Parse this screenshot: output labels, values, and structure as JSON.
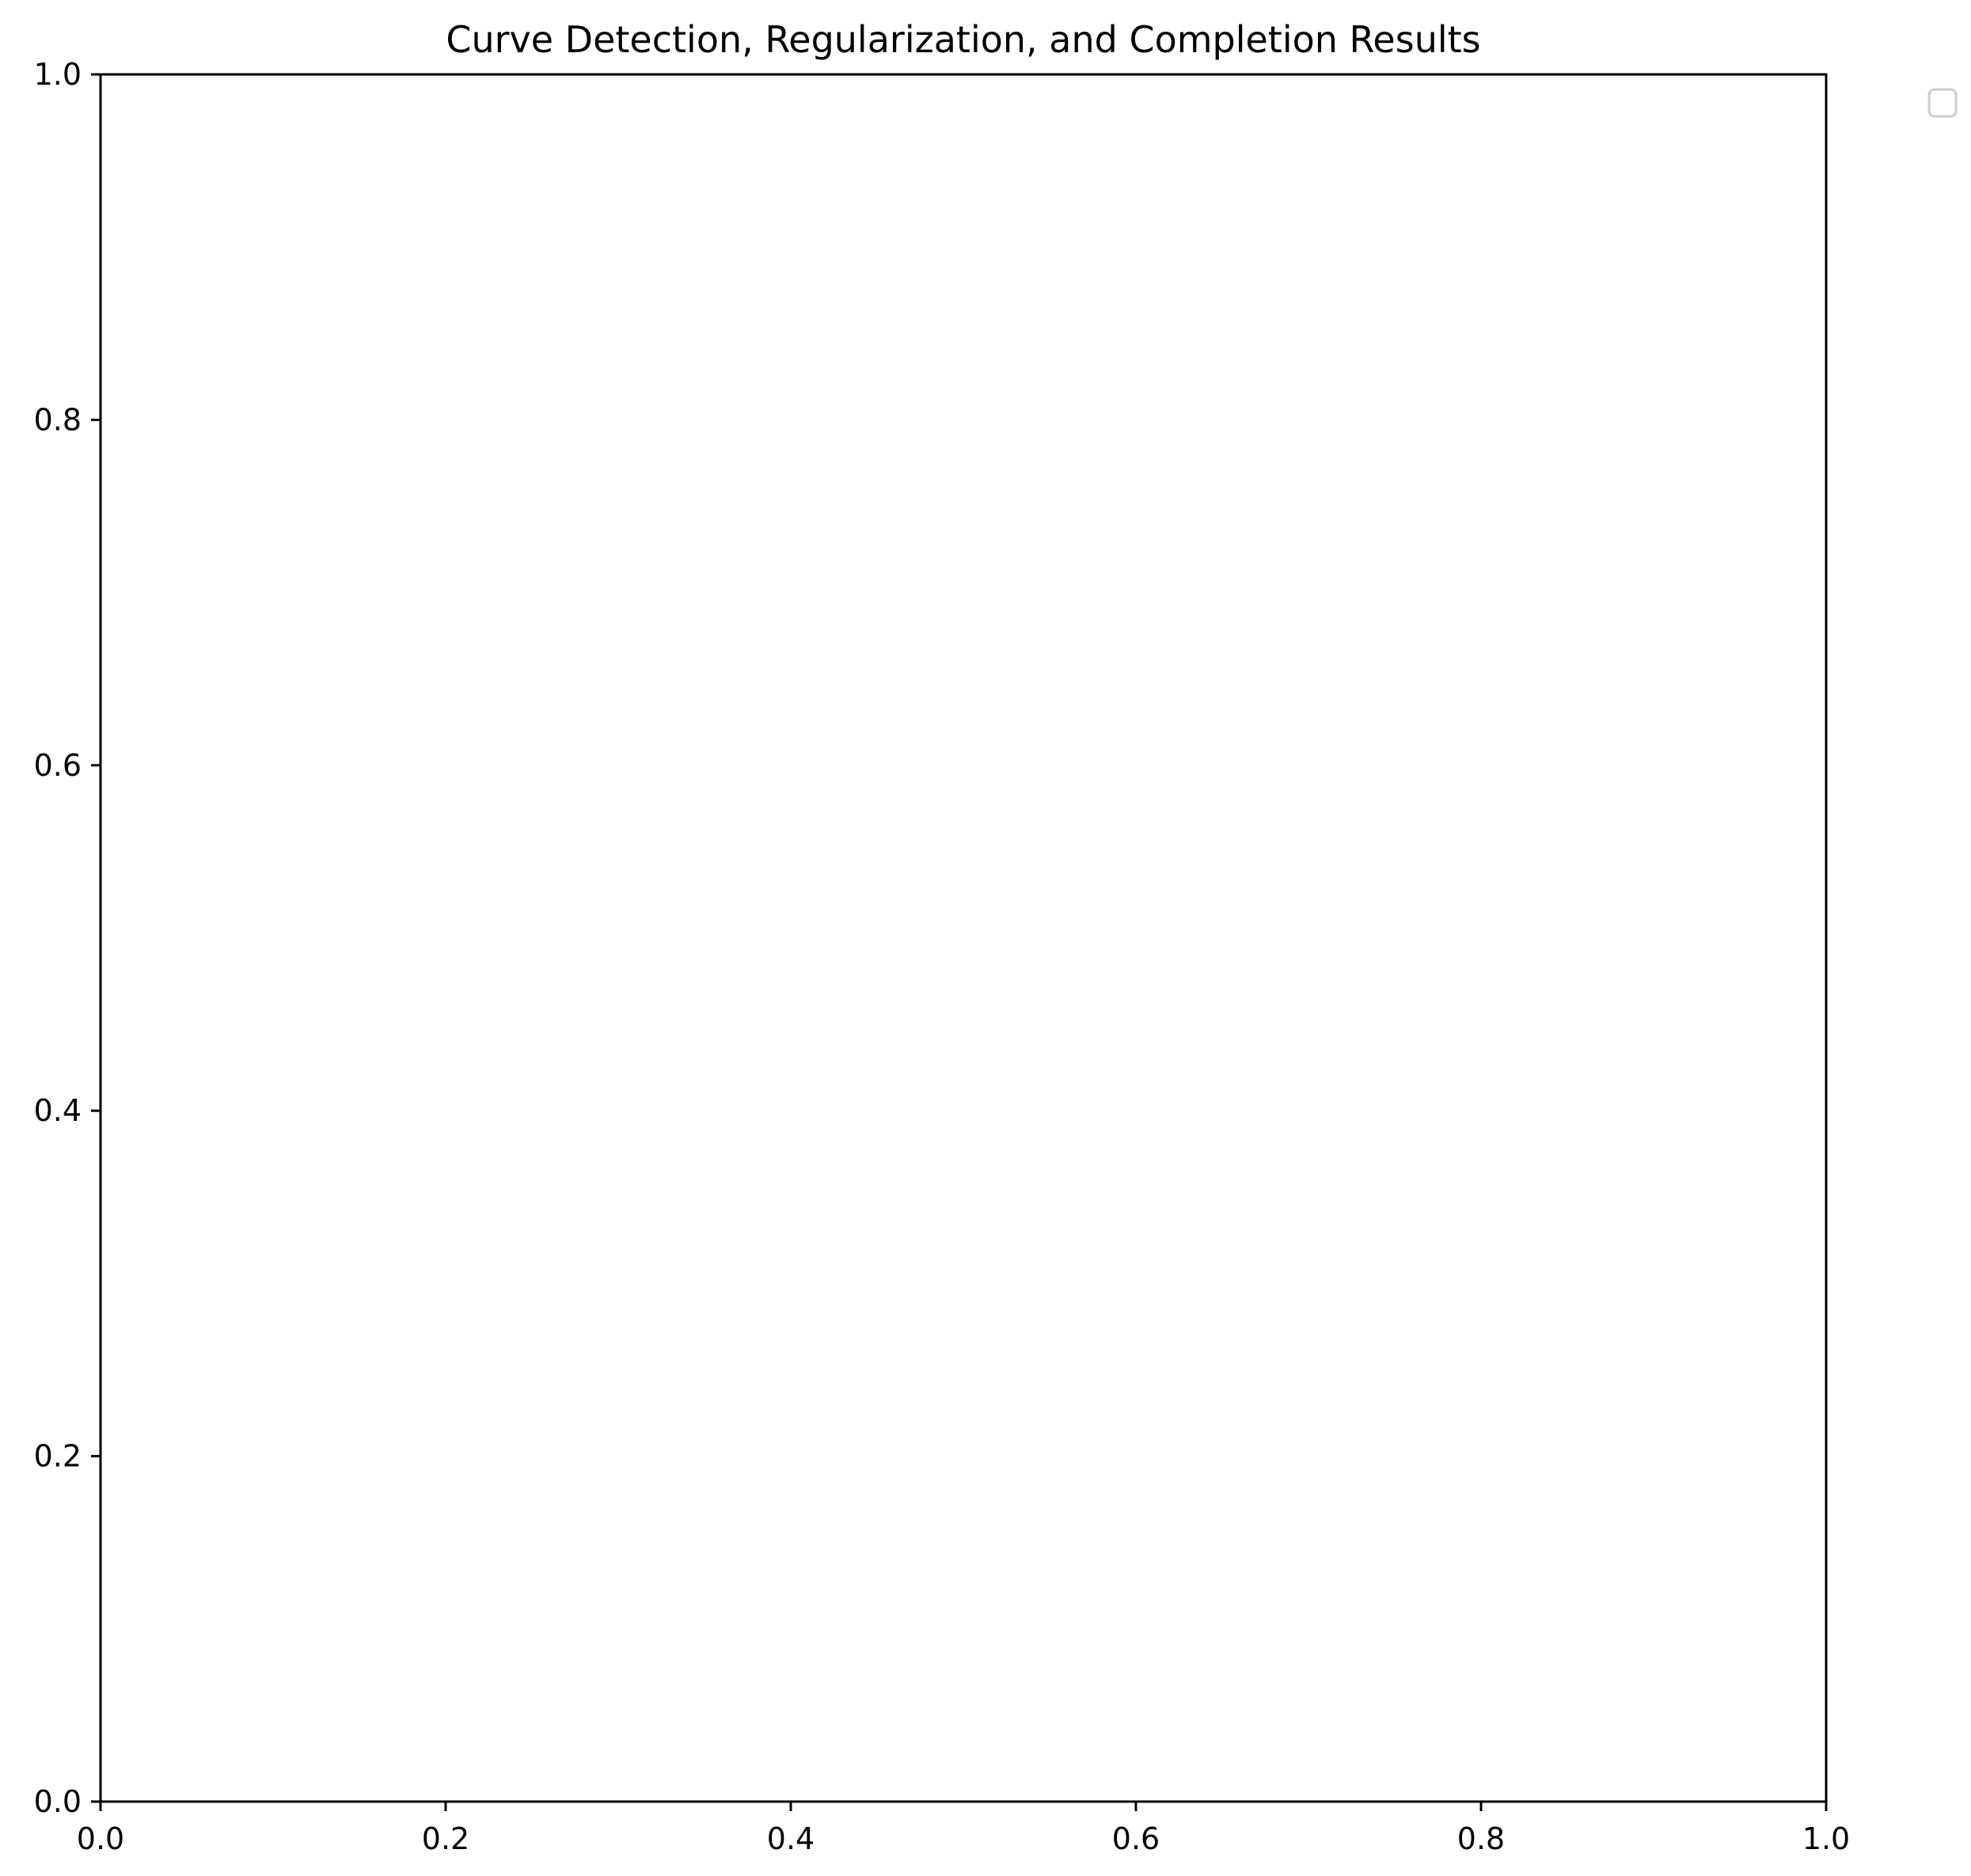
{
  "chart_data": {
    "type": "line",
    "title": "Curve Detection, Regularization, and Completion Results",
    "xlabel": "",
    "ylabel": "",
    "xlim": [
      0.0,
      1.0
    ],
    "ylim": [
      0.0,
      1.0
    ],
    "x_ticks": [
      0.0,
      0.2,
      0.4,
      0.6,
      0.8,
      1.0
    ],
    "y_ticks": [
      0.0,
      0.2,
      0.4,
      0.6,
      0.8,
      1.0
    ],
    "x_tick_labels": [
      "0.0",
      "0.2",
      "0.4",
      "0.6",
      "0.8",
      "1.0"
    ],
    "y_tick_labels": [
      "0.0",
      "0.2",
      "0.4",
      "0.6",
      "0.8",
      "1.0"
    ],
    "series": [],
    "grid": false,
    "legend": {
      "placement": "outside-upper-right",
      "entries": []
    },
    "colors": {
      "axes": "#000000",
      "background": "#ffffff",
      "legend_border": "#cccccc"
    }
  }
}
